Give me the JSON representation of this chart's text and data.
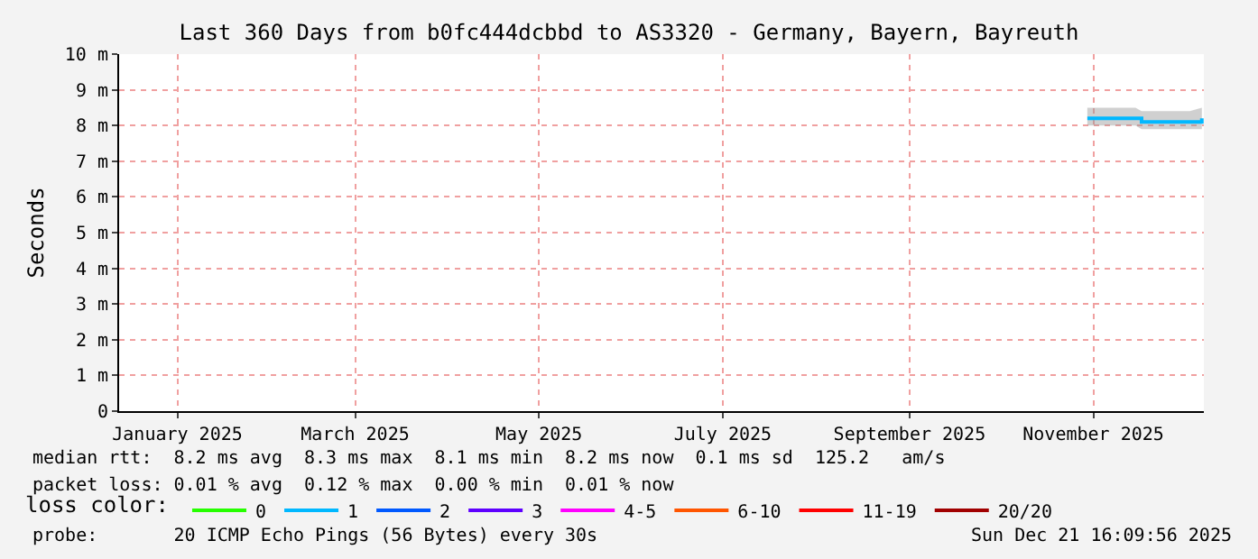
{
  "chart_data": {
    "type": "line",
    "title": "Last 360 Days from b0fc444dcbbd to AS3320 - Germany, Bayern, Bayreuth",
    "ylabel": "Seconds",
    "xlim": [
      "2024-12-26T16:09",
      "2025-12-21T16:09"
    ],
    "xticks": [
      {
        "value": "2025-01-15",
        "label": "January 2025"
      },
      {
        "value": "2025-03-15",
        "label": "March 2025"
      },
      {
        "value": "2025-05-15",
        "label": "May 2025"
      },
      {
        "value": "2025-07-15",
        "label": "July 2025"
      },
      {
        "value": "2025-09-15",
        "label": "September 2025"
      },
      {
        "value": "2025-11-15",
        "label": "November 2025"
      }
    ],
    "ylim": [
      0,
      10
    ],
    "yticks": [
      0,
      {
        "value": 1,
        "label": "1 m"
      },
      {
        "value": 2,
        "label": "2 m"
      },
      {
        "value": 3,
        "label": "3 m"
      },
      {
        "value": 4,
        "label": "4 m"
      },
      {
        "value": 5,
        "label": "5 m"
      },
      {
        "value": 6,
        "label": "6 m"
      },
      {
        "value": 7,
        "label": "7 m"
      },
      {
        "value": 8,
        "label": "8 m"
      },
      {
        "value": 9,
        "label": "9 m"
      },
      {
        "value": 10,
        "label": "10 m"
      }
    ],
    "grid": true,
    "legend": "bottom",
    "legend_title": "loss color:",
    "x": [
      "2025-11-13",
      "2025-11-17",
      "2025-11-21",
      "2025-11-25",
      "2025-11-29",
      "2025-12-01",
      "2025-12-05",
      "2025-12-09",
      "2025-12-13",
      "2025-12-17",
      "2025-12-21"
    ],
    "series": [
      {
        "name": "0",
        "color": "#26ff00",
        "values": [
          null,
          null,
          null,
          null,
          null,
          null,
          null,
          null,
          null,
          null,
          null
        ]
      },
      {
        "name": "1",
        "color": "#00b8ff",
        "values": [
          8.2,
          8.2,
          8.2,
          8.2,
          8.2,
          8.1,
          8.1,
          8.1,
          8.1,
          8.1,
          8.2
        ],
        "lower": [
          8.0,
          8.0,
          8.0,
          8.0,
          8.0,
          7.9,
          7.9,
          7.9,
          7.9,
          7.9,
          7.9
        ],
        "upper": [
          8.5,
          8.5,
          8.5,
          8.5,
          8.5,
          8.4,
          8.4,
          8.4,
          8.4,
          8.4,
          8.5
        ]
      },
      {
        "name": "2",
        "color": "#0059ff",
        "values": [
          null,
          null,
          null,
          null,
          null,
          null,
          null,
          null,
          null,
          null,
          null
        ]
      },
      {
        "name": "3",
        "color": "#5e00ff",
        "values": [
          null,
          null,
          null,
          null,
          null,
          null,
          null,
          null,
          null,
          null,
          null
        ]
      },
      {
        "name": "4-5",
        "color": "#ff00ff",
        "values": [
          null,
          null,
          null,
          null,
          null,
          null,
          null,
          null,
          null,
          null,
          null
        ]
      },
      {
        "name": "6-10",
        "color": "#ff5500",
        "values": [
          null,
          null,
          null,
          null,
          null,
          null,
          null,
          null,
          null,
          null,
          null
        ]
      },
      {
        "name": "11-19",
        "color": "#ff0000",
        "values": [
          null,
          null,
          null,
          null,
          null,
          null,
          null,
          null,
          null,
          null,
          null
        ]
      },
      {
        "name": "20/20",
        "color": "#a10000",
        "values": [
          null,
          null,
          null,
          null,
          null,
          null,
          null,
          null,
          null,
          null,
          null
        ]
      }
    ],
    "annotations": [
      "median rtt:  8.2 ms avg  8.3 ms max  8.1 ms min  8.2 ms now  0.1 ms sd  125.2   am/s",
      "packet loss: 0.01 % avg  0.12 % max  0.00 % min  0.01 % now",
      "probe:       20 ICMP Echo Pings (56 Bytes) every 30s",
      "Sun Dec 21 16:09:56 2025"
    ]
  }
}
